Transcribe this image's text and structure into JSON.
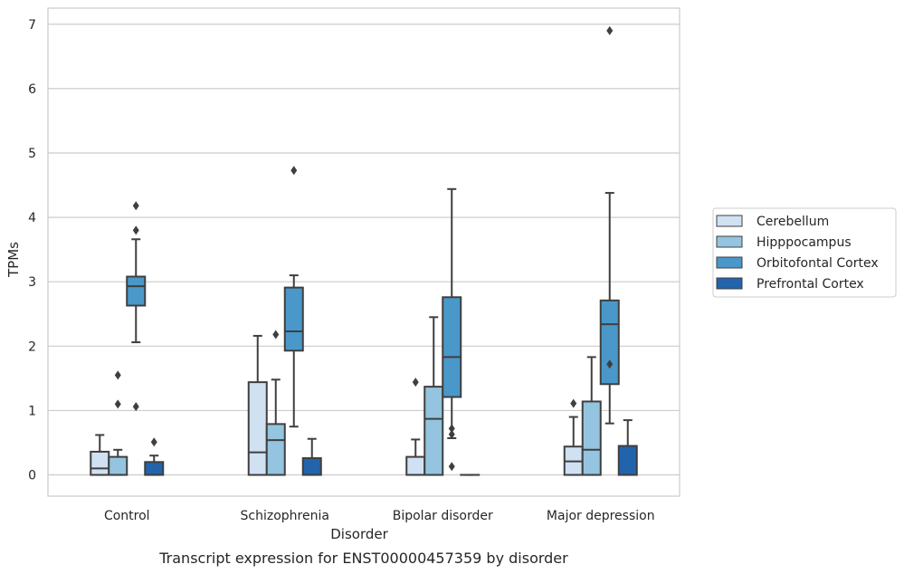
{
  "chart_data": {
    "type": "box",
    "title": "Transcript expression for ENST00000457359 by disorder",
    "xlabel": "Disorder",
    "ylabel": "TPMs",
    "ylim": [
      -0.33,
      7.25
    ],
    "yticks": [
      0,
      1,
      2,
      3,
      4,
      5,
      6,
      7
    ],
    "grid": "horizontal",
    "legend_position": "right",
    "categories": [
      "Control",
      "Schizophrenia",
      "Bipolar disorder",
      "Major depression"
    ],
    "series": [
      {
        "name": "Cerebellum",
        "color": "#d0e1f2",
        "boxes": [
          {
            "whislo": 0,
            "q1": 0,
            "med": 0.1,
            "q3": 0.36,
            "whishi": 0.62,
            "fliers": []
          },
          {
            "whislo": 0,
            "q1": 0,
            "med": 0.35,
            "q3": 1.44,
            "whishi": 2.16,
            "fliers": []
          },
          {
            "whislo": 0,
            "q1": 0,
            "med": 0,
            "q3": 0.28,
            "whishi": 0.55,
            "fliers": [
              1.44
            ]
          },
          {
            "whislo": 0,
            "q1": 0,
            "med": 0.21,
            "q3": 0.44,
            "whishi": 0.9,
            "fliers": [
              1.11
            ]
          }
        ]
      },
      {
        "name": "Hipppocampus",
        "color": "#94c4df",
        "boxes": [
          {
            "whislo": 0,
            "q1": 0,
            "med": 0,
            "q3": 0.28,
            "whishi": 0.39,
            "fliers": [
              1.1,
              1.55
            ]
          },
          {
            "whislo": 0,
            "q1": 0,
            "med": 0.54,
            "q3": 0.79,
            "whishi": 1.48,
            "fliers": [
              2.18
            ]
          },
          {
            "whislo": 0,
            "q1": 0,
            "med": 0.87,
            "q3": 1.37,
            "whishi": 2.45,
            "fliers": []
          },
          {
            "whislo": 0,
            "q1": 0,
            "med": 0.39,
            "q3": 1.14,
            "whishi": 1.83,
            "fliers": []
          }
        ]
      },
      {
        "name": "Orbitofontal Cortex",
        "color": "#4a98c9",
        "boxes": [
          {
            "whislo": 2.06,
            "q1": 2.63,
            "med": 2.93,
            "q3": 3.08,
            "whishi": 3.66,
            "fliers": [
              1.06,
              3.8,
              4.18
            ]
          },
          {
            "whislo": 0.75,
            "q1": 1.93,
            "med": 2.23,
            "q3": 2.91,
            "whishi": 3.1,
            "fliers": [
              4.73
            ]
          },
          {
            "whislo": 0.57,
            "q1": 1.21,
            "med": 1.83,
            "q3": 2.76,
            "whishi": 4.44,
            "fliers": [
              0.13,
              0.63,
              0.72
            ]
          },
          {
            "whislo": 0.8,
            "q1": 1.41,
            "med": 2.34,
            "q3": 2.71,
            "whishi": 4.38,
            "fliers": [
              1.72,
              6.9
            ]
          }
        ]
      },
      {
        "name": "Prefrontal Cortex",
        "color": "#2164ab",
        "boxes": [
          {
            "whislo": 0,
            "q1": 0,
            "med": 0,
            "q3": 0.2,
            "whishi": 0.3,
            "fliers": [
              0.51
            ]
          },
          {
            "whislo": 0,
            "q1": 0,
            "med": 0,
            "q3": 0.26,
            "whishi": 0.56,
            "fliers": []
          },
          {
            "whislo": 0,
            "q1": 0,
            "med": 0,
            "q3": 0,
            "whishi": 0,
            "fliers": []
          },
          {
            "whislo": 0,
            "q1": 0,
            "med": 0,
            "q3": 0.45,
            "whishi": 0.85,
            "fliers": []
          }
        ]
      }
    ]
  }
}
